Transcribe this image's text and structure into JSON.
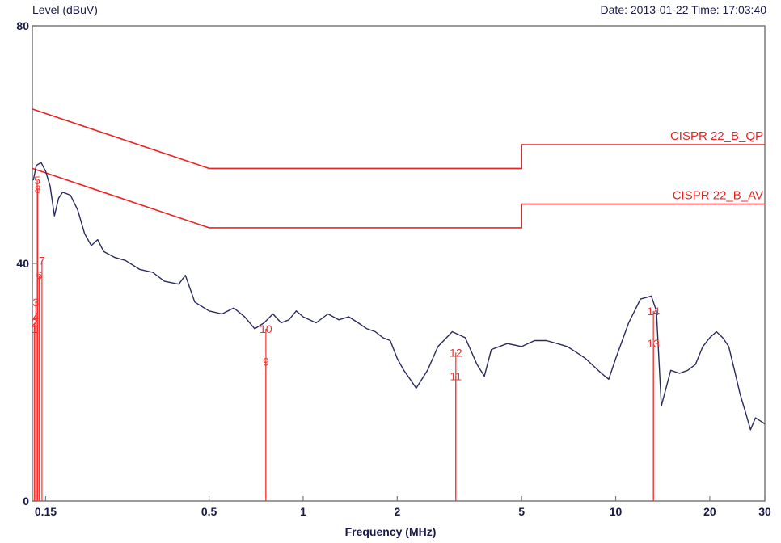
{
  "header": {
    "ylabel": "Level (dBuV)",
    "date_time": "Date: 2013-01-22  Time: 17:03:40"
  },
  "chart_data": {
    "type": "line",
    "title": "",
    "xlabel": "Frequency (MHz)",
    "ylabel": "Level (dBuV)",
    "x_scale": "log",
    "xlim": [
      0.136,
      30
    ],
    "ylim": [
      0,
      80
    ],
    "x_ticks": [
      0.15,
      0.5,
      1,
      2,
      5,
      10,
      20,
      30
    ],
    "x_tick_labels": [
      "0.15",
      "0.5",
      "1",
      "2",
      "5",
      "10",
      "20",
      "30"
    ],
    "y_ticks": [
      0,
      40,
      80
    ],
    "y_tick_labels": [
      "0",
      "40",
      "80"
    ],
    "grid": false,
    "colors": {
      "trace": "#2a2a5e",
      "limit": "#ee2222",
      "marker": "#ee3333",
      "axis": "#7a7a7a"
    },
    "limit_lines": [
      {
        "name": "CISPR 22_B_QP",
        "points": [
          [
            0.136,
            66
          ],
          [
            0.5,
            56
          ],
          [
            5,
            56
          ],
          [
            5,
            60
          ],
          [
            30,
            60
          ]
        ]
      },
      {
        "name": "CISPR 22_B_AV",
        "points": [
          [
            0.136,
            56
          ],
          [
            0.5,
            46
          ],
          [
            5,
            46
          ],
          [
            5,
            50
          ],
          [
            30,
            50
          ]
        ]
      }
    ],
    "series": [
      {
        "points": [
          [
            0.137,
            54
          ],
          [
            0.14,
            56.5
          ],
          [
            0.145,
            57
          ],
          [
            0.15,
            55.5
          ],
          [
            0.155,
            53
          ],
          [
            0.16,
            48
          ],
          [
            0.165,
            51
          ],
          [
            0.17,
            52
          ],
          [
            0.18,
            51.5
          ],
          [
            0.19,
            49
          ],
          [
            0.2,
            45
          ],
          [
            0.21,
            43
          ],
          [
            0.22,
            44
          ],
          [
            0.23,
            42
          ],
          [
            0.25,
            41
          ],
          [
            0.27,
            40.5
          ],
          [
            0.3,
            39
          ],
          [
            0.33,
            38.5
          ],
          [
            0.36,
            37
          ],
          [
            0.4,
            36.5
          ],
          [
            0.42,
            38
          ],
          [
            0.45,
            33.5
          ],
          [
            0.5,
            32
          ],
          [
            0.55,
            31.5
          ],
          [
            0.6,
            32.5
          ],
          [
            0.65,
            31
          ],
          [
            0.7,
            29
          ],
          [
            0.75,
            30
          ],
          [
            0.8,
            31.5
          ],
          [
            0.85,
            30
          ],
          [
            0.9,
            30.5
          ],
          [
            0.95,
            32
          ],
          [
            1,
            31
          ],
          [
            1.1,
            30
          ],
          [
            1.2,
            31.5
          ],
          [
            1.3,
            30.5
          ],
          [
            1.4,
            31
          ],
          [
            1.5,
            30
          ],
          [
            1.6,
            29
          ],
          [
            1.7,
            28.5
          ],
          [
            1.8,
            27.5
          ],
          [
            1.9,
            27
          ],
          [
            2,
            24
          ],
          [
            2.1,
            22
          ],
          [
            2.2,
            20.5
          ],
          [
            2.3,
            19
          ],
          [
            2.5,
            22
          ],
          [
            2.7,
            26
          ],
          [
            3,
            28.5
          ],
          [
            3.3,
            27.5
          ],
          [
            3.6,
            23
          ],
          [
            3.8,
            21
          ],
          [
            4,
            25.5
          ],
          [
            4.5,
            26.5
          ],
          [
            5,
            26
          ],
          [
            5.5,
            27
          ],
          [
            6,
            27
          ],
          [
            6.5,
            26.5
          ],
          [
            7,
            26
          ],
          [
            7.5,
            25
          ],
          [
            8,
            24
          ],
          [
            9,
            21.5
          ],
          [
            9.5,
            20.5
          ],
          [
            10,
            24
          ],
          [
            11,
            30
          ],
          [
            12,
            34
          ],
          [
            13,
            34.5
          ],
          [
            13.5,
            32
          ],
          [
            14,
            16
          ],
          [
            15,
            22
          ],
          [
            16,
            21.5
          ],
          [
            17,
            22
          ],
          [
            18,
            23
          ],
          [
            19,
            26
          ],
          [
            20,
            27.5
          ],
          [
            21,
            28.5
          ],
          [
            22,
            27.5
          ],
          [
            23,
            26
          ],
          [
            24,
            22
          ],
          [
            25,
            18
          ],
          [
            26,
            15
          ],
          [
            27,
            12
          ],
          [
            28,
            14
          ],
          [
            29,
            13.5
          ],
          [
            30,
            13
          ]
        ]
      }
    ],
    "markers": [
      {
        "label": "1",
        "x": 0.138,
        "y": 29
      },
      {
        "label": "2",
        "x": 0.138,
        "y": 30
      },
      {
        "label": "3",
        "x": 0.1395,
        "y": 33.5
      },
      {
        "label": "4",
        "x": 0.1395,
        "y": 31
      },
      {
        "label": "5",
        "x": 0.141,
        "y": 54
      },
      {
        "label": "6",
        "x": 0.143,
        "y": 38
      },
      {
        "label": "7",
        "x": 0.146,
        "y": 40.5
      },
      {
        "label": "8",
        "x": 0.1415,
        "y": 52.5
      },
      {
        "label": "9",
        "x": 0.76,
        "y": 23.5
      },
      {
        "label": "10",
        "x": 0.76,
        "y": 29
      },
      {
        "label": "11",
        "x": 3.08,
        "y": 21
      },
      {
        "label": "12",
        "x": 3.08,
        "y": 25
      },
      {
        "label": "13",
        "x": 13.2,
        "y": 26.5
      },
      {
        "label": "14",
        "x": 13.2,
        "y": 32
      }
    ]
  }
}
